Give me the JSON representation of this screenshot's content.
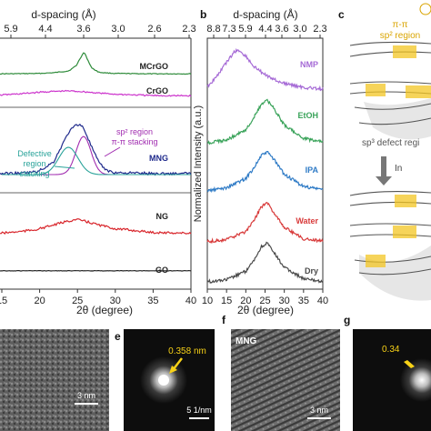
{
  "panels": {
    "b_label": "b",
    "c_label": "c",
    "e_label": "e",
    "f_label": "f",
    "g_label": "g"
  },
  "panel_a": {
    "top_axis_title": "d-spacing (Å)",
    "top_ticks": [
      "5.9",
      "4.4",
      "3.6",
      "3.0",
      "2.6",
      "2.3"
    ],
    "bottom_ticks": [
      "15",
      "20",
      "25",
      "30",
      "35",
      "40"
    ],
    "xlabel": "2θ (degree)",
    "series_labels": [
      "MCrGO",
      "CrGO",
      "MNG",
      "NG",
      "GO"
    ],
    "annotations": {
      "sp2_line1": "sp² region",
      "sp2_line2": "π-π stacking",
      "defect_line1": "Defective",
      "defect_line2": "region",
      "defect_line3": "stacking"
    }
  },
  "panel_b": {
    "top_axis_title": "d-spacing (Å)",
    "top_ticks": [
      "8.8",
      "7.3",
      "5.9",
      "4.4",
      "3.6",
      "3.0",
      "2.3"
    ],
    "bottom_ticks": [
      "10",
      "15",
      "20",
      "25",
      "30",
      "35",
      "40"
    ],
    "xlabel": "2θ (degree)",
    "ylabel": "Normalized Intensity (a.u.)",
    "series_labels": [
      "NMP",
      "EtOH",
      "IPA",
      "Water",
      "Dry"
    ]
  },
  "panel_c": {
    "region_line1": "π-π",
    "region_line2": "sp² region",
    "defect_label": "sp³ defect regi",
    "arrow_label": "In"
  },
  "micrographs": {
    "e_spacing": "0.358 nm",
    "e_scale": "5 1/nm",
    "f_title": "MNG",
    "f_scale": "3 nm",
    "d_scale": "3 nm",
    "g_spacing": "0.34"
  },
  "colors": {
    "MCrGO": "#2e8b3a",
    "CrGO": "#cc33cc",
    "MNG": "#1f2a8c",
    "NG": "#d8242a",
    "GO": "#222222",
    "NMP": "#a66bd6",
    "EtOH": "#3aa35a",
    "IPA": "#2f7bc6",
    "Water": "#d83a3a",
    "Dry": "#4a4a4a",
    "fit_sp2": "#a12db0",
    "fit_defect": "#2aa39a",
    "highlight": "#f3c623"
  },
  "chart_data": [
    {
      "type": "line",
      "xlabel": "2θ (degree)",
      "ylabel": "",
      "xlim": [
        15,
        40
      ],
      "series": [
        {
          "name": "MCrGO",
          "x": [
            15,
            20,
            22,
            24,
            25,
            25.5,
            26,
            26.5,
            27,
            28,
            30,
            35,
            40
          ],
          "y": [
            0.02,
            0.03,
            0.05,
            0.1,
            0.25,
            0.45,
            0.62,
            0.4,
            0.18,
            0.06,
            0.03,
            0.02,
            0.02
          ]
        },
        {
          "name": "CrGO",
          "x": [
            15,
            18,
            20,
            22,
            24,
            26,
            28,
            30,
            35,
            40
          ],
          "y": [
            0.05,
            0.1,
            0.15,
            0.18,
            0.2,
            0.17,
            0.12,
            0.08,
            0.03,
            0.02
          ]
        },
        {
          "name": "MNG",
          "x": [
            15,
            18,
            20,
            22,
            23,
            24,
            25,
            25.5,
            26,
            27,
            28,
            29,
            30,
            35,
            40
          ],
          "y": [
            0.02,
            0.03,
            0.06,
            0.25,
            0.55,
            0.85,
            1.0,
            1.0,
            0.92,
            0.55,
            0.22,
            0.08,
            0.04,
            0.02,
            0.02
          ]
        },
        {
          "name": "NG",
          "x": [
            15,
            18,
            20,
            22,
            24,
            25,
            26,
            28,
            30,
            35,
            40
          ],
          "y": [
            0.05,
            0.12,
            0.2,
            0.35,
            0.5,
            0.55,
            0.5,
            0.35,
            0.22,
            0.08,
            0.05
          ]
        },
        {
          "name": "GO",
          "x": [
            15,
            20,
            25,
            30,
            35,
            40
          ],
          "y": [
            0.02,
            0.02,
            0.02,
            0.02,
            0.02,
            0.02
          ]
        }
      ]
    },
    {
      "type": "line",
      "xlabel": "2θ (degree)",
      "ylabel": "Normalized Intensity (a.u.)",
      "xlim": [
        10,
        40
      ],
      "series": [
        {
          "name": "NMP",
          "x": [
            10,
            12,
            15,
            17,
            18,
            20,
            22,
            25,
            28,
            30,
            35,
            40
          ],
          "y": [
            0.1,
            0.3,
            0.7,
            0.95,
            1.0,
            0.85,
            0.6,
            0.4,
            0.25,
            0.18,
            0.08,
            0.05
          ]
        },
        {
          "name": "EtOH",
          "x": [
            10,
            15,
            20,
            22,
            24,
            25.5,
            27,
            30,
            35,
            40
          ],
          "y": [
            0.05,
            0.12,
            0.35,
            0.6,
            0.9,
            1.0,
            0.85,
            0.45,
            0.15,
            0.08
          ]
        },
        {
          "name": "IPA",
          "x": [
            10,
            15,
            20,
            22,
            24,
            25.5,
            27,
            30,
            35,
            40
          ],
          "y": [
            0.05,
            0.12,
            0.35,
            0.6,
            0.9,
            1.0,
            0.85,
            0.45,
            0.15,
            0.08
          ]
        },
        {
          "name": "Water",
          "x": [
            10,
            15,
            20,
            22,
            24,
            25.5,
            27,
            30,
            35,
            40
          ],
          "y": [
            0.05,
            0.1,
            0.3,
            0.55,
            0.9,
            1.0,
            0.8,
            0.4,
            0.12,
            0.06
          ]
        },
        {
          "name": "Dry",
          "x": [
            10,
            15,
            20,
            22,
            24,
            25.5,
            27,
            30,
            35,
            40
          ],
          "y": [
            0.05,
            0.1,
            0.3,
            0.55,
            0.9,
            1.0,
            0.8,
            0.4,
            0.12,
            0.06
          ]
        }
      ]
    }
  ]
}
